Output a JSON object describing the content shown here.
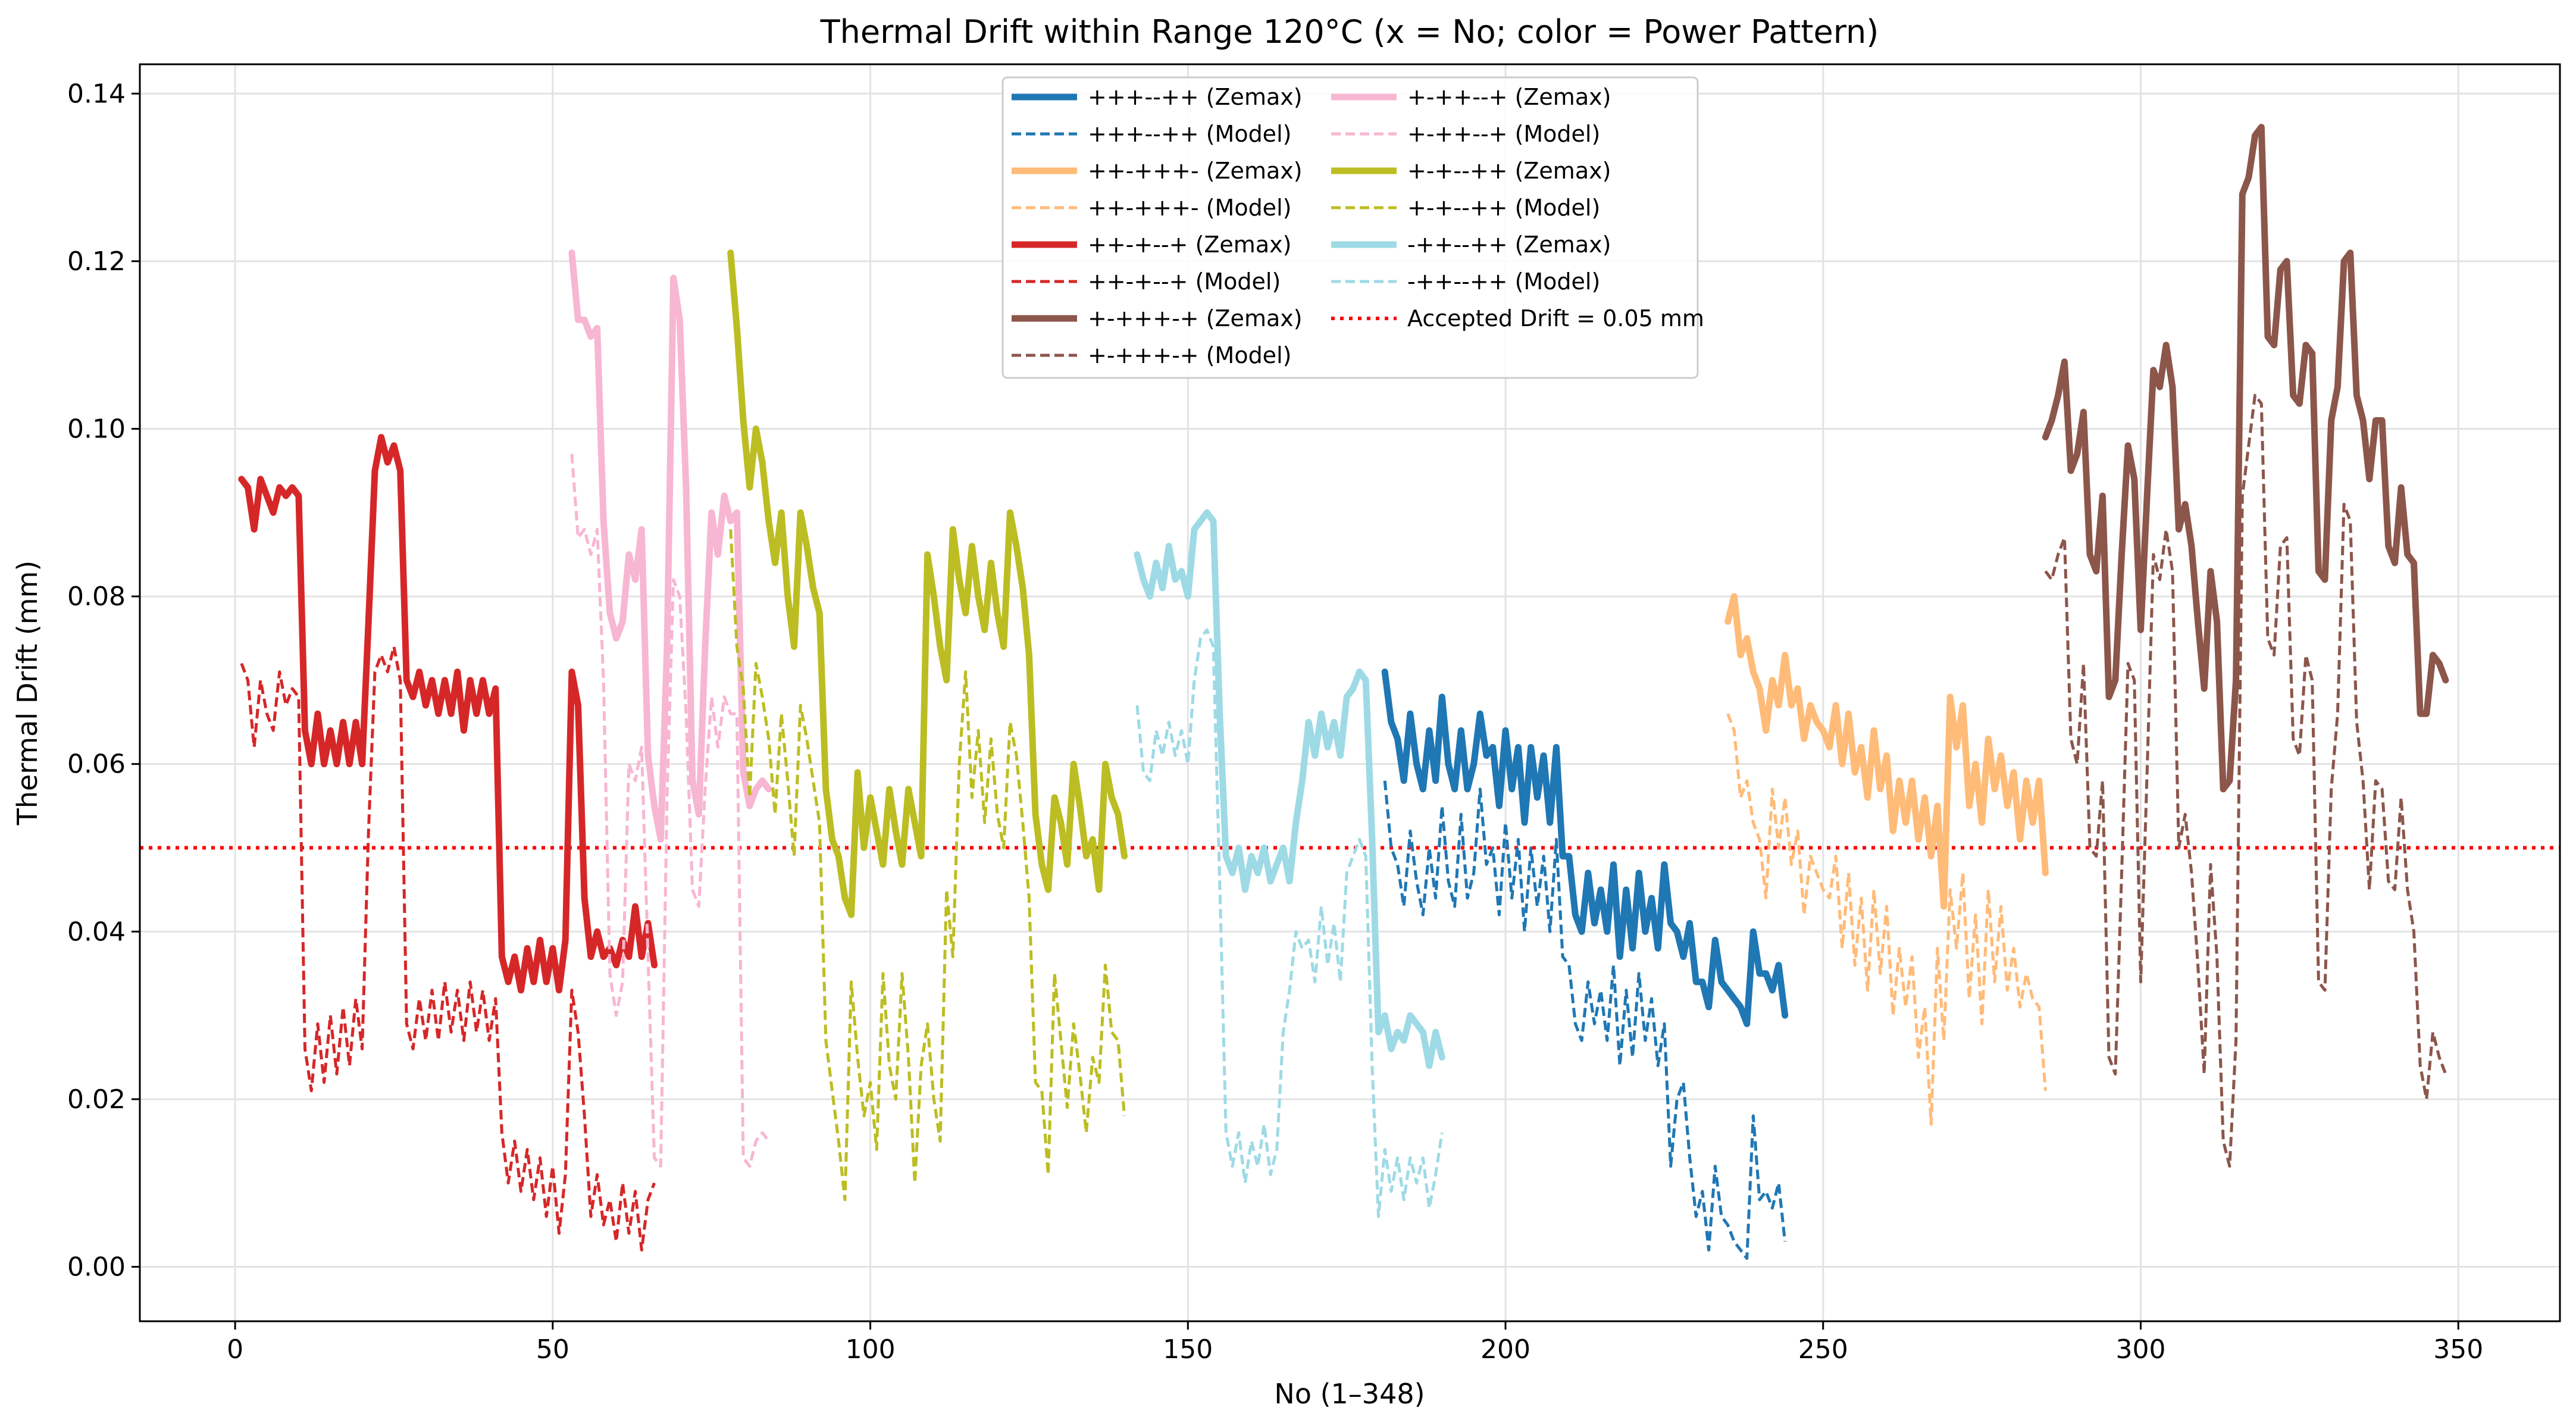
{
  "chart_data": {
    "type": "line",
    "title": "Thermal Drift within Range 120°C (x = No; color = Power Pattern)",
    "xlabel": "No (1–348)",
    "ylabel": "Thermal Drift (mm)",
    "xlim": [
      -15,
      366
    ],
    "ylim": [
      -0.0065,
      0.1435
    ],
    "xticks": [
      0,
      50,
      100,
      150,
      200,
      250,
      300,
      350
    ],
    "yticks": [
      0.0,
      0.02,
      0.04,
      0.06,
      0.08,
      0.1,
      0.12,
      0.14
    ],
    "xtick_labels": [
      "0",
      "50",
      "100",
      "150",
      "200",
      "250",
      "300",
      "350"
    ],
    "ytick_labels": [
      "0.00",
      "0.02",
      "0.04",
      "0.06",
      "0.08",
      "0.10",
      "0.12",
      "0.14"
    ],
    "grid": true,
    "legend_position": "top-center",
    "threshold": {
      "label": "Accepted Drift = 0.05 mm",
      "value": 0.05,
      "color": "#ff0000"
    },
    "series": [
      {
        "pattern": "+++--++",
        "color": "#1f77b4",
        "zemax_label": "+++--++ (Zemax)",
        "model_label": "+++--++ (Model)",
        "x_start": 181,
        "zemax": [
          0.071,
          0.065,
          0.063,
          0.058,
          0.066,
          0.06,
          0.057,
          0.064,
          0.058,
          0.068,
          0.06,
          0.057,
          0.064,
          0.057,
          0.06,
          0.066,
          0.061,
          0.062,
          0.055,
          0.064,
          0.057,
          0.062,
          0.053,
          0.062,
          0.056,
          0.061,
          0.053,
          0.062,
          0.049,
          0.049,
          0.042,
          0.04,
          0.047,
          0.041,
          0.045,
          0.04,
          0.048,
          0.037,
          0.045,
          0.038,
          0.047,
          0.04,
          0.044,
          0.038,
          0.048,
          0.041,
          0.04,
          0.037,
          0.041,
          0.034,
          0.034,
          0.031,
          0.039,
          0.034,
          0.033,
          0.032,
          0.031,
          0.029,
          0.04,
          0.035,
          0.035,
          0.033,
          0.036,
          0.03
        ],
        "model": [
          0.058,
          0.05,
          0.048,
          0.043,
          0.052,
          0.046,
          0.042,
          0.05,
          0.044,
          0.055,
          0.046,
          0.043,
          0.054,
          0.044,
          0.047,
          0.057,
          0.048,
          0.05,
          0.042,
          0.053,
          0.044,
          0.051,
          0.04,
          0.05,
          0.043,
          0.049,
          0.04,
          0.051,
          0.037,
          0.036,
          0.029,
          0.027,
          0.034,
          0.029,
          0.033,
          0.027,
          0.036,
          0.024,
          0.033,
          0.025,
          0.035,
          0.027,
          0.032,
          0.024,
          0.029,
          0.012,
          0.02,
          0.022,
          0.013,
          0.006,
          0.009,
          0.002,
          0.012,
          0.006,
          0.005,
          0.003,
          0.002,
          0.001,
          0.018,
          0.008,
          0.009,
          0.007,
          0.01,
          0.003
        ]
      },
      {
        "pattern": "++-+++-",
        "color": "#ffbb78",
        "zemax_label": "++-+++- (Zemax)",
        "model_label": "++-+++- (Model)",
        "x_start": 235,
        "zemax": [
          0.077,
          0.08,
          0.073,
          0.075,
          0.071,
          0.069,
          0.064,
          0.07,
          0.067,
          0.073,
          0.067,
          0.069,
          0.063,
          0.067,
          0.065,
          0.064,
          0.062,
          0.067,
          0.06,
          0.066,
          0.059,
          0.062,
          0.056,
          0.064,
          0.057,
          0.061,
          0.052,
          0.058,
          0.053,
          0.058,
          0.051,
          0.056,
          0.049,
          0.055,
          0.043,
          0.068,
          0.062,
          0.067,
          0.055,
          0.06,
          0.053,
          0.063,
          0.057,
          0.061,
          0.055,
          0.059,
          0.051,
          0.058,
          0.053,
          0.058,
          0.047
        ],
        "model": [
          0.066,
          0.064,
          0.056,
          0.058,
          0.053,
          0.051,
          0.044,
          0.057,
          0.05,
          0.056,
          0.048,
          0.052,
          0.042,
          0.049,
          0.047,
          0.045,
          0.044,
          0.049,
          0.038,
          0.047,
          0.036,
          0.044,
          0.033,
          0.045,
          0.035,
          0.043,
          0.03,
          0.038,
          0.031,
          0.037,
          0.025,
          0.031,
          0.017,
          0.038,
          0.027,
          0.045,
          0.038,
          0.047,
          0.032,
          0.042,
          0.029,
          0.045,
          0.034,
          0.043,
          0.033,
          0.038,
          0.031,
          0.035,
          0.032,
          0.031,
          0.021
        ]
      },
      {
        "pattern": "++-+--+",
        "color": "#d62728",
        "zemax_label": "++-+--+ (Zemax)",
        "model_label": "++-+--+ (Model)",
        "x_start": 1,
        "zemax": [
          0.094,
          0.093,
          0.088,
          0.094,
          0.092,
          0.09,
          0.093,
          0.092,
          0.093,
          0.092,
          0.064,
          0.06,
          0.066,
          0.06,
          0.064,
          0.06,
          0.065,
          0.06,
          0.065,
          0.06,
          0.077,
          0.095,
          0.099,
          0.096,
          0.098,
          0.095,
          0.07,
          0.068,
          0.071,
          0.067,
          0.07,
          0.066,
          0.07,
          0.066,
          0.071,
          0.064,
          0.07,
          0.066,
          0.07,
          0.066,
          0.069,
          0.037,
          0.034,
          0.037,
          0.033,
          0.038,
          0.034,
          0.039,
          0.034,
          0.038,
          0.033,
          0.039,
          0.071,
          0.067,
          0.044,
          0.037,
          0.04,
          0.037,
          0.038,
          0.036,
          0.039,
          0.037,
          0.043,
          0.037,
          0.041,
          0.036
        ],
        "model": [
          0.072,
          0.07,
          0.062,
          0.07,
          0.066,
          0.064,
          0.071,
          0.067,
          0.069,
          0.068,
          0.026,
          0.021,
          0.029,
          0.022,
          0.03,
          0.023,
          0.031,
          0.024,
          0.032,
          0.026,
          0.052,
          0.071,
          0.073,
          0.071,
          0.074,
          0.07,
          0.029,
          0.026,
          0.032,
          0.027,
          0.033,
          0.027,
          0.034,
          0.028,
          0.033,
          0.027,
          0.034,
          0.028,
          0.033,
          0.027,
          0.032,
          0.016,
          0.01,
          0.015,
          0.009,
          0.014,
          0.008,
          0.013,
          0.006,
          0.012,
          0.004,
          0.011,
          0.033,
          0.028,
          0.018,
          0.006,
          0.011,
          0.005,
          0.008,
          0.003,
          0.01,
          0.004,
          0.009,
          0.002,
          0.008,
          0.01
        ]
      },
      {
        "pattern": "+-+++-+",
        "color": "#8c564b",
        "zemax_label": "+-+++-+ (Zemax)",
        "model_label": "+-+++-+ (Model)",
        "x_start": 285,
        "zemax": [
          0.099,
          0.101,
          0.104,
          0.108,
          0.095,
          0.097,
          0.102,
          0.085,
          0.083,
          0.092,
          0.068,
          0.07,
          0.085,
          0.098,
          0.094,
          0.076,
          0.092,
          0.107,
          0.105,
          0.11,
          0.105,
          0.088,
          0.091,
          0.086,
          0.077,
          0.069,
          0.083,
          0.077,
          0.057,
          0.058,
          0.07,
          0.128,
          0.13,
          0.135,
          0.136,
          0.111,
          0.11,
          0.119,
          0.12,
          0.104,
          0.103,
          0.11,
          0.109,
          0.083,
          0.082,
          0.101,
          0.105,
          0.12,
          0.121,
          0.104,
          0.101,
          0.094,
          0.101,
          0.101,
          0.086,
          0.084,
          0.093,
          0.085,
          0.084,
          0.066,
          0.066,
          0.073,
          0.072,
          0.07
        ],
        "model": [
          0.083,
          0.082,
          0.085,
          0.087,
          0.063,
          0.06,
          0.072,
          0.05,
          0.049,
          0.058,
          0.025,
          0.023,
          0.047,
          0.072,
          0.07,
          0.034,
          0.059,
          0.085,
          0.082,
          0.088,
          0.083,
          0.05,
          0.054,
          0.047,
          0.036,
          0.023,
          0.048,
          0.037,
          0.015,
          0.012,
          0.027,
          0.092,
          0.098,
          0.104,
          0.103,
          0.075,
          0.073,
          0.086,
          0.087,
          0.063,
          0.061,
          0.073,
          0.07,
          0.034,
          0.033,
          0.057,
          0.066,
          0.091,
          0.089,
          0.065,
          0.058,
          0.045,
          0.058,
          0.057,
          0.046,
          0.045,
          0.056,
          0.045,
          0.04,
          0.024,
          0.02,
          0.028,
          0.025,
          0.023
        ]
      },
      {
        "pattern": "+-++--+",
        "color": "#f7b6d2",
        "zemax_label": "+-++--+ (Zemax)",
        "model_label": "+-++--+ (Model)",
        "x_start": 53,
        "zemax": [
          0.121,
          0.113,
          0.113,
          0.111,
          0.112,
          0.089,
          0.078,
          0.075,
          0.077,
          0.085,
          0.082,
          0.088,
          0.061,
          0.055,
          0.051,
          0.074,
          0.118,
          0.113,
          0.093,
          0.058,
          0.054,
          0.074,
          0.09,
          0.085,
          0.092,
          0.089,
          0.09,
          0.059,
          0.055,
          0.057,
          0.058,
          0.057
        ],
        "model": [
          0.097,
          0.087,
          0.088,
          0.085,
          0.088,
          0.07,
          0.035,
          0.03,
          0.034,
          0.06,
          0.058,
          0.062,
          0.037,
          0.013,
          0.012,
          0.056,
          0.082,
          0.08,
          0.066,
          0.045,
          0.043,
          0.057,
          0.068,
          0.062,
          0.068,
          0.066,
          0.066,
          0.013,
          0.012,
          0.015,
          0.016,
          0.015
        ]
      },
      {
        "pattern": "+-+--++",
        "color": "#bcbd22",
        "zemax_label": "+-+--++ (Zemax)",
        "model_label": "+-+--++ (Model)",
        "x_start": 78,
        "zemax": [
          0.121,
          0.112,
          0.101,
          0.093,
          0.1,
          0.096,
          0.089,
          0.084,
          0.09,
          0.08,
          0.074,
          0.09,
          0.086,
          0.081,
          0.078,
          0.057,
          0.051,
          0.049,
          0.044,
          0.042,
          0.059,
          0.05,
          0.056,
          0.052,
          0.048,
          0.057,
          0.052,
          0.048,
          0.057,
          0.053,
          0.049,
          0.085,
          0.08,
          0.074,
          0.07,
          0.088,
          0.082,
          0.078,
          0.086,
          0.08,
          0.076,
          0.084,
          0.078,
          0.074,
          0.09,
          0.086,
          0.081,
          0.073,
          0.054,
          0.048,
          0.045,
          0.056,
          0.053,
          0.048,
          0.06,
          0.055,
          0.049,
          0.051,
          0.045,
          0.06,
          0.056,
          0.054,
          0.049
        ],
        "model": [
          0.088,
          0.074,
          0.069,
          0.056,
          0.072,
          0.068,
          0.063,
          0.054,
          0.066,
          0.058,
          0.049,
          0.067,
          0.063,
          0.058,
          0.053,
          0.027,
          0.021,
          0.015,
          0.008,
          0.034,
          0.025,
          0.018,
          0.022,
          0.014,
          0.035,
          0.024,
          0.02,
          0.035,
          0.025,
          0.01,
          0.024,
          0.029,
          0.02,
          0.015,
          0.045,
          0.037,
          0.06,
          0.071,
          0.056,
          0.064,
          0.053,
          0.063,
          0.054,
          0.05,
          0.065,
          0.061,
          0.053,
          0.044,
          0.022,
          0.021,
          0.011,
          0.035,
          0.027,
          0.019,
          0.029,
          0.023,
          0.016,
          0.025,
          0.022,
          0.036,
          0.028,
          0.027,
          0.018
        ]
      },
      {
        "pattern": "-++--++",
        "color": "#9edae5",
        "zemax_label": "-++--++ (Zemax)",
        "model_label": "-++--++ (Model)",
        "x_start": 142,
        "zemax": [
          0.085,
          0.082,
          0.08,
          0.084,
          0.081,
          0.086,
          0.082,
          0.083,
          0.08,
          0.088,
          0.089,
          0.09,
          0.089,
          0.066,
          0.049,
          0.047,
          0.05,
          0.045,
          0.049,
          0.047,
          0.05,
          0.046,
          0.048,
          0.05,
          0.046,
          0.053,
          0.058,
          0.065,
          0.061,
          0.066,
          0.062,
          0.065,
          0.061,
          0.068,
          0.069,
          0.071,
          0.07,
          0.051,
          0.028,
          0.03,
          0.026,
          0.028,
          0.027,
          0.03,
          0.029,
          0.028,
          0.024,
          0.028,
          0.025
        ],
        "model": [
          0.067,
          0.059,
          0.058,
          0.064,
          0.061,
          0.065,
          0.061,
          0.064,
          0.06,
          0.07,
          0.075,
          0.076,
          0.074,
          0.046,
          0.016,
          0.012,
          0.016,
          0.01,
          0.015,
          0.012,
          0.017,
          0.011,
          0.014,
          0.028,
          0.033,
          0.04,
          0.038,
          0.039,
          0.034,
          0.043,
          0.036,
          0.041,
          0.034,
          0.047,
          0.049,
          0.051,
          0.049,
          0.024,
          0.006,
          0.014,
          0.009,
          0.013,
          0.008,
          0.013,
          0.01,
          0.013,
          0.007,
          0.011,
          0.016
        ]
      }
    ]
  }
}
